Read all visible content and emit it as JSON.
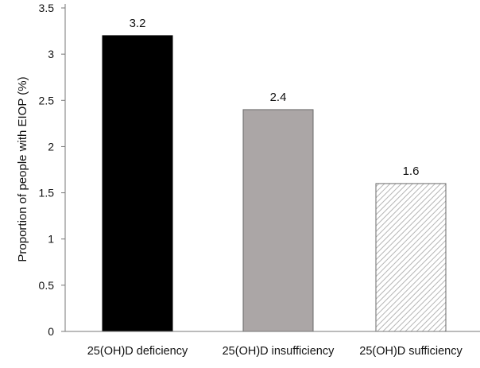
{
  "chart_data": {
    "type": "bar",
    "title": "",
    "xlabel": "",
    "ylabel": "Proportion of people with EIOP (%)",
    "categories": [
      "25(OH)D deficiency",
      "25(OH)D insufficiency",
      "25(OH)D sufficiency"
    ],
    "values": [
      3.2,
      2.4,
      1.6
    ],
    "data_labels": [
      "3.2",
      "2.4",
      "1.6"
    ],
    "ylim": [
      0,
      3.5
    ],
    "yticks": [
      "0",
      "0.5",
      "1",
      "1.5",
      "2",
      "2.5",
      "3",
      "3.5"
    ],
    "bar_styles": [
      {
        "fill": "#000000",
        "pattern": "solid"
      },
      {
        "fill": "#aba6a6",
        "pattern": "solid"
      },
      {
        "fill": "#ffffff",
        "pattern": "diagonal-hatch",
        "hatch_color": "#b5b5b5"
      }
    ],
    "grid": false
  }
}
